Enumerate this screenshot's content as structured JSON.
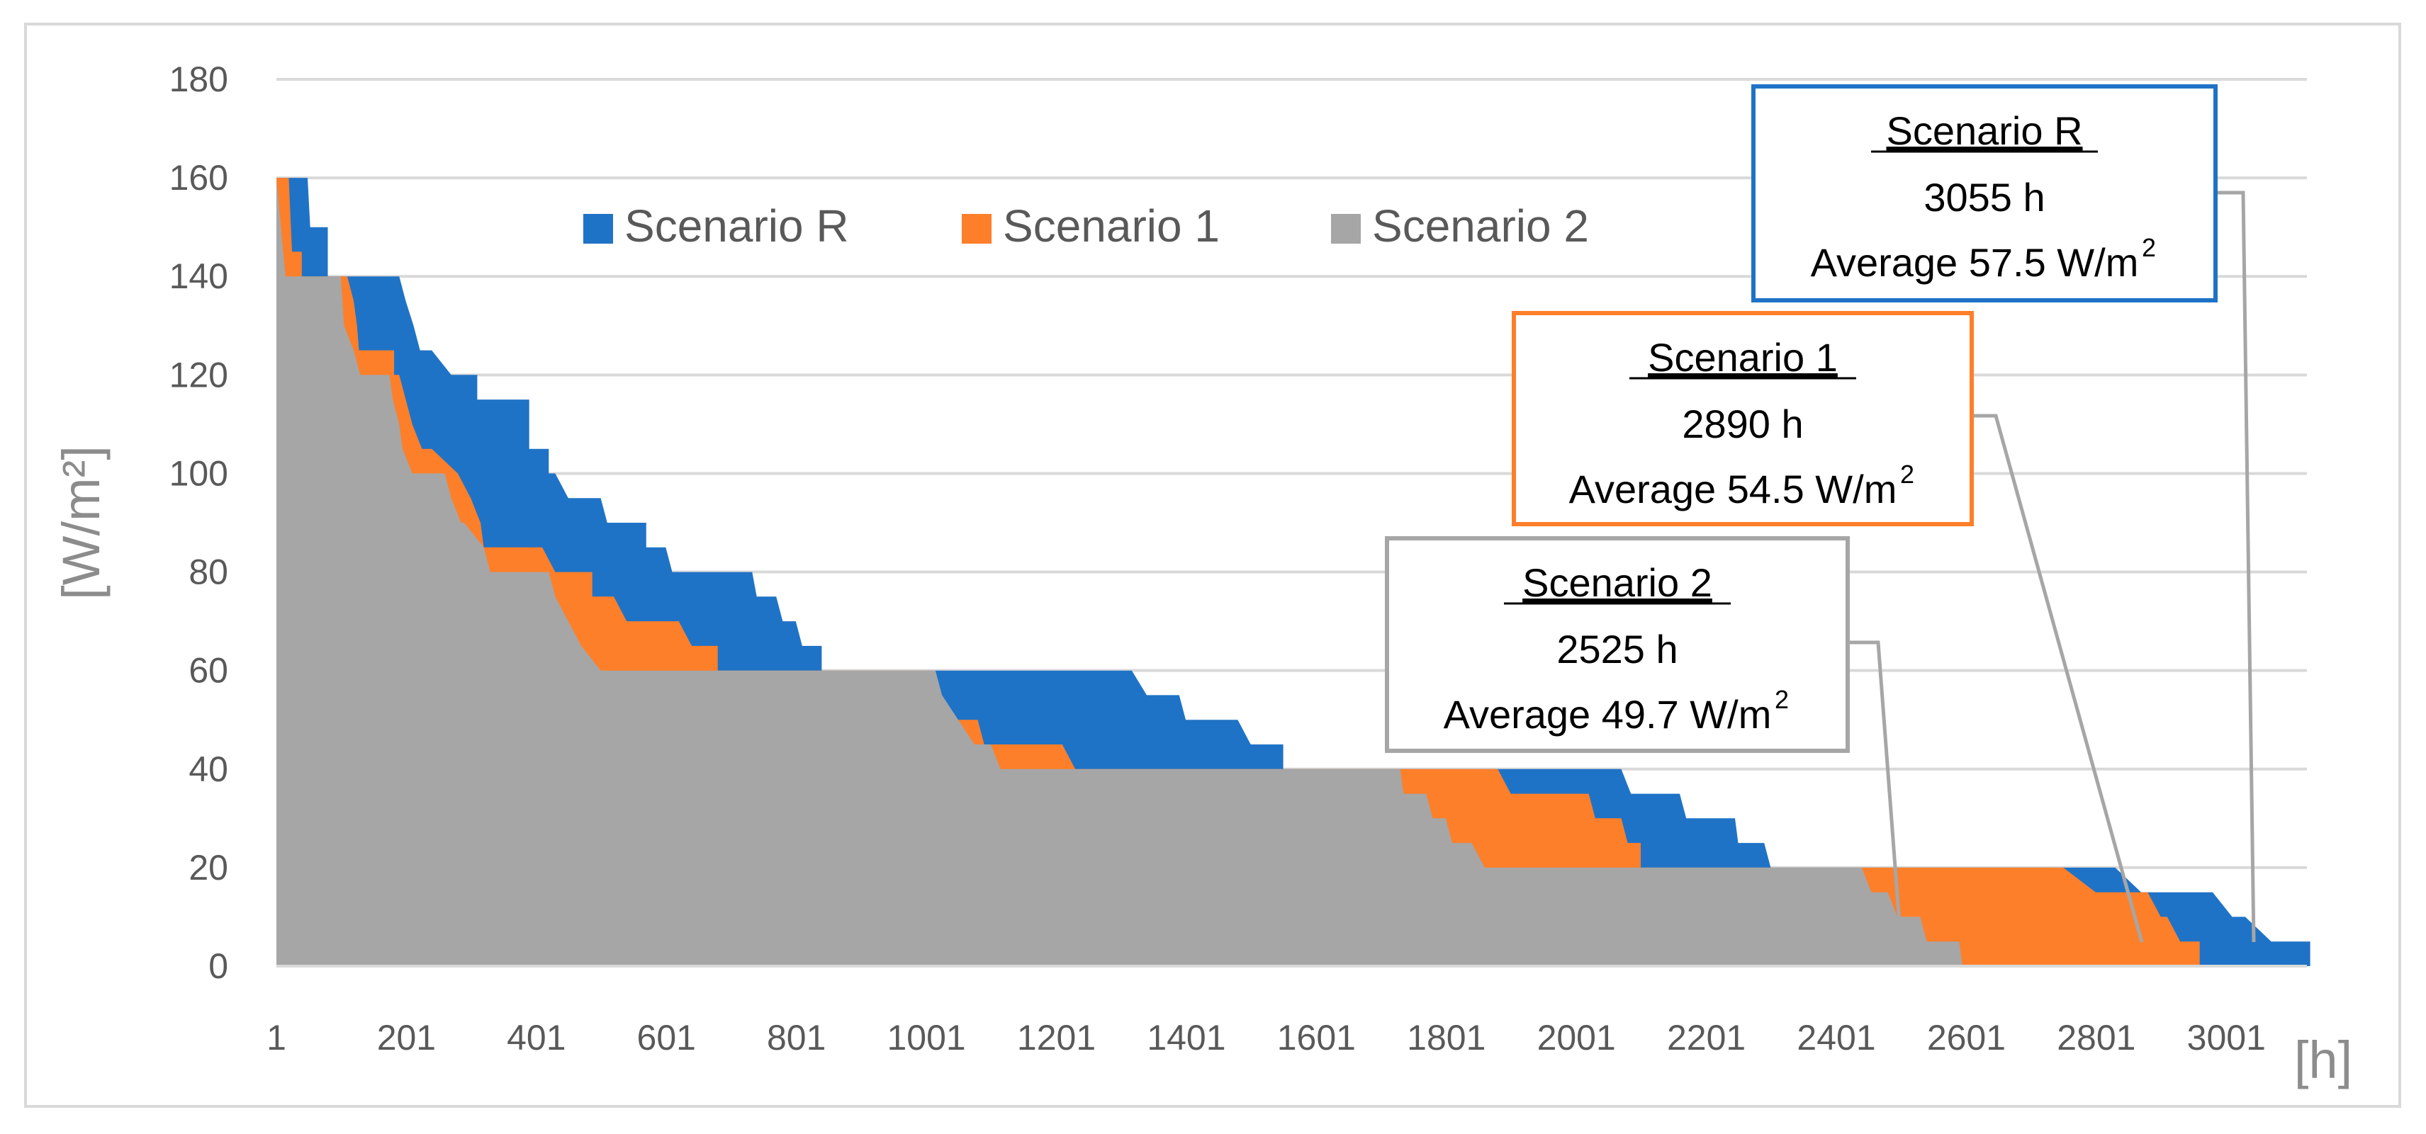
{
  "chart_data": {
    "type": "area",
    "title": "",
    "xlabel": "[h]",
    "ylabel": "[W/m²]",
    "xlim": [
      1,
      3125
    ],
    "ylim": [
      0,
      180
    ],
    "x_ticks": [
      "1",
      "201",
      "401",
      "601",
      "801",
      "1001",
      "1201",
      "1401",
      "1601",
      "1801",
      "2001",
      "2201",
      "2401",
      "2601",
      "2801",
      "3001"
    ],
    "y_ticks": [
      "0",
      "20",
      "40",
      "60",
      "80",
      "100",
      "120",
      "140",
      "160",
      "180"
    ],
    "grid": true,
    "legend_position": "top-center",
    "series": [
      {
        "name": "Scenario R",
        "color": "#1f73c6",
        "hours": 3055,
        "average": "57.5",
        "points": [
          [
            1,
            160
          ],
          [
            49,
            160
          ],
          [
            53,
            150
          ],
          [
            80,
            150
          ],
          [
            80,
            140
          ],
          [
            190,
            140
          ],
          [
            200,
            135
          ],
          [
            212,
            130
          ],
          [
            222,
            125
          ],
          [
            240,
            125
          ],
          [
            270,
            120
          ],
          [
            310,
            120
          ],
          [
            310,
            115
          ],
          [
            390,
            115
          ],
          [
            390,
            105
          ],
          [
            420,
            105
          ],
          [
            420,
            100
          ],
          [
            430,
            100
          ],
          [
            450,
            95
          ],
          [
            500,
            95
          ],
          [
            510,
            90
          ],
          [
            570,
            90
          ],
          [
            570,
            85
          ],
          [
            600,
            85
          ],
          [
            610,
            80
          ],
          [
            733,
            80
          ],
          [
            740,
            75
          ],
          [
            770,
            75
          ],
          [
            780,
            70
          ],
          [
            800,
            70
          ],
          [
            810,
            65
          ],
          [
            840,
            65
          ],
          [
            840,
            60
          ],
          [
            1317,
            60
          ],
          [
            1340,
            55
          ],
          [
            1390,
            55
          ],
          [
            1400,
            50
          ],
          [
            1480,
            50
          ],
          [
            1500,
            45
          ],
          [
            1550,
            45
          ],
          [
            1550,
            40
          ],
          [
            2070,
            40
          ],
          [
            2085,
            35
          ],
          [
            2160,
            35
          ],
          [
            2170,
            30
          ],
          [
            2245,
            30
          ],
          [
            2250,
            25
          ],
          [
            2290,
            25
          ],
          [
            2300,
            20
          ],
          [
            2830,
            20
          ],
          [
            2870,
            15
          ],
          [
            2980,
            15
          ],
          [
            3010,
            10
          ],
          [
            3030,
            10
          ],
          [
            3070,
            5
          ],
          [
            3130,
            5
          ],
          [
            3130,
            0
          ]
        ]
      },
      {
        "name": "Scenario 1",
        "color": "#fe7f2a",
        "hours": 2890,
        "average": "54.5",
        "points": [
          [
            1,
            160
          ],
          [
            20,
            160
          ],
          [
            25,
            145
          ],
          [
            40,
            145
          ],
          [
            40,
            140
          ],
          [
            110,
            140
          ],
          [
            120,
            135
          ],
          [
            125,
            130
          ],
          [
            128,
            125
          ],
          [
            182,
            125
          ],
          [
            182,
            120
          ],
          [
            190,
            120
          ],
          [
            200,
            115
          ],
          [
            210,
            110
          ],
          [
            225,
            105
          ],
          [
            240,
            105
          ],
          [
            280,
            100
          ],
          [
            300,
            95
          ],
          [
            315,
            90
          ],
          [
            320,
            85
          ],
          [
            330,
            85
          ],
          [
            410,
            85
          ],
          [
            430,
            80
          ],
          [
            487,
            80
          ],
          [
            487,
            75
          ],
          [
            520,
            75
          ],
          [
            540,
            70
          ],
          [
            620,
            70
          ],
          [
            640,
            65
          ],
          [
            680,
            65
          ],
          [
            680,
            60
          ],
          [
            1012,
            60
          ],
          [
            1012,
            55
          ],
          [
            1020,
            55
          ],
          [
            1040,
            50
          ],
          [
            1080,
            50
          ],
          [
            1090,
            45
          ],
          [
            1210,
            45
          ],
          [
            1230,
            40
          ],
          [
            1380,
            40
          ],
          [
            1380,
            40
          ],
          [
            1880,
            40
          ],
          [
            1900,
            35
          ],
          [
            2020,
            35
          ],
          [
            2030,
            30
          ],
          [
            2070,
            30
          ],
          [
            2080,
            25
          ],
          [
            2100,
            25
          ],
          [
            2100,
            20
          ],
          [
            2750,
            20
          ],
          [
            2800,
            15
          ],
          [
            2880,
            15
          ],
          [
            2900,
            10
          ],
          [
            2910,
            10
          ],
          [
            2930,
            5
          ],
          [
            2960,
            5
          ],
          [
            2960,
            0
          ]
        ]
      },
      {
        "name": "Scenario 2",
        "color": "#a6a6a6",
        "hours": 2525,
        "average": "49.7",
        "points": [
          [
            1,
            160
          ],
          [
            8,
            150
          ],
          [
            15,
            140
          ],
          [
            100,
            140
          ],
          [
            105,
            130
          ],
          [
            120,
            125
          ],
          [
            130,
            120
          ],
          [
            175,
            120
          ],
          [
            180,
            115
          ],
          [
            190,
            110
          ],
          [
            195,
            105
          ],
          [
            210,
            100
          ],
          [
            260,
            100
          ],
          [
            270,
            95
          ],
          [
            285,
            90
          ],
          [
            290,
            90
          ],
          [
            320,
            85
          ],
          [
            330,
            80
          ],
          [
            420,
            80
          ],
          [
            430,
            75
          ],
          [
            450,
            70
          ],
          [
            470,
            65
          ],
          [
            500,
            60
          ],
          [
            1015,
            60
          ],
          [
            1025,
            55
          ],
          [
            1050,
            50
          ],
          [
            1075,
            45
          ],
          [
            1100,
            45
          ],
          [
            1115,
            40
          ],
          [
            1730,
            40
          ],
          [
            1735,
            35
          ],
          [
            1770,
            35
          ],
          [
            1780,
            30
          ],
          [
            1800,
            30
          ],
          [
            1810,
            25
          ],
          [
            1840,
            25
          ],
          [
            1860,
            20
          ],
          [
            2440,
            20
          ],
          [
            2455,
            15
          ],
          [
            2480,
            15
          ],
          [
            2495,
            10
          ],
          [
            2530,
            10
          ],
          [
            2540,
            5
          ],
          [
            2590,
            5
          ],
          [
            2595,
            0
          ]
        ]
      }
    ],
    "annotations": [
      {
        "title": "Scenario R",
        "hours_label": "3055 h",
        "average_label": "Average 57.5 W/m",
        "superscript": "2"
      },
      {
        "title": "Scenario 1",
        "hours_label": "2890 h",
        "average_label": "Average 54.5 W/m",
        "superscript": "2"
      },
      {
        "title": "Scenario 2",
        "hours_label": "2525 h",
        "average_label": "Average 49.7 W/m",
        "superscript": "2"
      }
    ]
  }
}
